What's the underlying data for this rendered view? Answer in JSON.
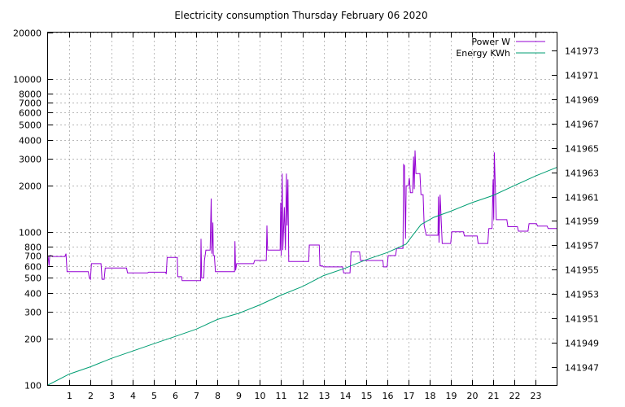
{
  "chart_data": {
    "type": "line",
    "title": "Electricity consumption Thursday February 06 2020",
    "xlabel": "",
    "ylabel": "",
    "y2label": "",
    "xlim": [
      0,
      24
    ],
    "ylim": [
      100,
      20000
    ],
    "yscale": "log",
    "y2lim": [
      141945.5,
      141974.5
    ],
    "grid": true,
    "legend_position": "top-right",
    "x_ticks": [
      1,
      2,
      3,
      4,
      5,
      6,
      7,
      8,
      9,
      10,
      11,
      12,
      13,
      14,
      15,
      16,
      17,
      18,
      19,
      20,
      21,
      22,
      23
    ],
    "y_ticks": [
      100,
      200,
      300,
      400,
      500,
      600,
      700,
      800,
      1000,
      2000,
      3000,
      4000,
      5000,
      6000,
      7000,
      8000,
      10000,
      20000
    ],
    "y2_ticks": [
      141947,
      141949,
      141951,
      141953,
      141955,
      141957,
      141959,
      141961,
      141963,
      141965,
      141967,
      141969,
      141971,
      141973
    ],
    "series": [
      {
        "name": "Power W",
        "axis": "y",
        "color": "#9400d3",
        "points": [
          [
            0.0,
            700
          ],
          [
            0.05,
            600
          ],
          [
            0.08,
            700
          ],
          [
            0.15,
            700
          ],
          [
            0.2,
            690
          ],
          [
            0.8,
            690
          ],
          [
            0.85,
            720
          ],
          [
            0.9,
            550
          ],
          [
            1.9,
            550
          ],
          [
            1.95,
            500
          ],
          [
            2.0,
            490
          ],
          [
            2.05,
            620
          ],
          [
            2.5,
            620
          ],
          [
            2.55,
            490
          ],
          [
            2.65,
            490
          ],
          [
            2.7,
            580
          ],
          [
            3.7,
            580
          ],
          [
            3.75,
            540
          ],
          [
            4.7,
            540
          ],
          [
            4.75,
            545
          ],
          [
            5.55,
            545
          ],
          [
            5.58,
            530
          ],
          [
            5.62,
            680
          ],
          [
            6.1,
            680
          ],
          [
            6.12,
            510
          ],
          [
            6.3,
            510
          ],
          [
            6.33,
            480
          ],
          [
            7.2,
            480
          ],
          [
            7.22,
            900
          ],
          [
            7.25,
            500
          ],
          [
            7.35,
            500
          ],
          [
            7.38,
            650
          ],
          [
            7.45,
            760
          ],
          [
            7.65,
            760
          ],
          [
            7.7,
            1650
          ],
          [
            7.73,
            720
          ],
          [
            7.78,
            1150
          ],
          [
            7.8,
            700
          ],
          [
            7.85,
            700
          ],
          [
            7.9,
            550
          ],
          [
            8.8,
            550
          ],
          [
            8.82,
            870
          ],
          [
            8.85,
            560
          ],
          [
            8.9,
            620
          ],
          [
            9.7,
            620
          ],
          [
            9.75,
            650
          ],
          [
            10.3,
            650
          ],
          [
            10.33,
            1100
          ],
          [
            10.36,
            760
          ],
          [
            10.95,
            760
          ],
          [
            10.98,
            1550
          ],
          [
            11.0,
            700
          ],
          [
            11.05,
            2400
          ],
          [
            11.08,
            760
          ],
          [
            11.15,
            1450
          ],
          [
            11.2,
            760
          ],
          [
            11.25,
            2400
          ],
          [
            11.28,
            1100
          ],
          [
            11.32,
            2200
          ],
          [
            11.36,
            640
          ],
          [
            12.3,
            640
          ],
          [
            12.33,
            820
          ],
          [
            12.8,
            820
          ],
          [
            12.83,
            600
          ],
          [
            12.95,
            600
          ],
          [
            13.0,
            590
          ],
          [
            13.9,
            590
          ],
          [
            13.95,
            540
          ],
          [
            14.25,
            540
          ],
          [
            14.3,
            740
          ],
          [
            14.7,
            740
          ],
          [
            14.75,
            650
          ],
          [
            15.8,
            650
          ],
          [
            15.83,
            590
          ],
          [
            16.0,
            590
          ],
          [
            16.05,
            700
          ],
          [
            16.4,
            700
          ],
          [
            16.45,
            780
          ],
          [
            16.75,
            780
          ],
          [
            16.78,
            2750
          ],
          [
            16.82,
            2700
          ],
          [
            16.87,
            900
          ],
          [
            16.9,
            2000
          ],
          [
            17.0,
            2000
          ],
          [
            17.05,
            2250
          ],
          [
            17.1,
            1800
          ],
          [
            17.2,
            1800
          ],
          [
            17.25,
            3100
          ],
          [
            17.28,
            1900
          ],
          [
            17.32,
            3400
          ],
          [
            17.36,
            2400
          ],
          [
            17.55,
            2400
          ],
          [
            17.6,
            1750
          ],
          [
            17.7,
            1750
          ],
          [
            17.75,
            1100
          ],
          [
            17.85,
            950
          ],
          [
            18.4,
            950
          ],
          [
            18.42,
            1700
          ],
          [
            18.45,
            850
          ],
          [
            18.5,
            1750
          ],
          [
            18.55,
            1200
          ],
          [
            18.6,
            840
          ],
          [
            19.0,
            840
          ],
          [
            19.05,
            1000
          ],
          [
            19.6,
            1000
          ],
          [
            19.65,
            940
          ],
          [
            20.25,
            940
          ],
          [
            20.3,
            840
          ],
          [
            20.75,
            840
          ],
          [
            20.8,
            1050
          ],
          [
            20.95,
            1050
          ],
          [
            21.0,
            2200
          ],
          [
            21.03,
            1200
          ],
          [
            21.06,
            3300
          ],
          [
            21.1,
            2100
          ],
          [
            21.15,
            1200
          ],
          [
            21.65,
            1200
          ],
          [
            21.7,
            1080
          ],
          [
            22.15,
            1080
          ],
          [
            22.2,
            1010
          ],
          [
            22.65,
            1010
          ],
          [
            22.7,
            1130
          ],
          [
            23.05,
            1130
          ],
          [
            23.1,
            1090
          ],
          [
            23.55,
            1090
          ],
          [
            23.6,
            1050
          ],
          [
            24.0,
            1050
          ]
        ]
      },
      {
        "name": "Energy KWh",
        "axis": "y2",
        "color": "#009e73",
        "points": [
          [
            0.0,
            141945.5
          ],
          [
            1.0,
            141946.4
          ],
          [
            2.0,
            141947.0
          ],
          [
            3.0,
            141947.7
          ],
          [
            4.0,
            141948.3
          ],
          [
            5.0,
            141948.9
          ],
          [
            6.0,
            141949.5
          ],
          [
            7.0,
            141950.1
          ],
          [
            8.0,
            141950.9
          ],
          [
            9.0,
            141951.4
          ],
          [
            10.0,
            141952.1
          ],
          [
            11.0,
            141952.9
          ],
          [
            12.0,
            141953.6
          ],
          [
            13.0,
            141954.5
          ],
          [
            14.0,
            141955.1
          ],
          [
            15.0,
            141955.8
          ],
          [
            16.0,
            141956.4
          ],
          [
            16.9,
            141957.1
          ],
          [
            17.2,
            141957.8
          ],
          [
            17.6,
            141958.7
          ],
          [
            18.2,
            141959.3
          ],
          [
            19.0,
            141959.8
          ],
          [
            20.0,
            141960.5
          ],
          [
            21.0,
            141961.1
          ],
          [
            22.0,
            141961.9
          ],
          [
            23.0,
            141962.7
          ],
          [
            24.0,
            141963.4
          ]
        ]
      }
    ]
  }
}
